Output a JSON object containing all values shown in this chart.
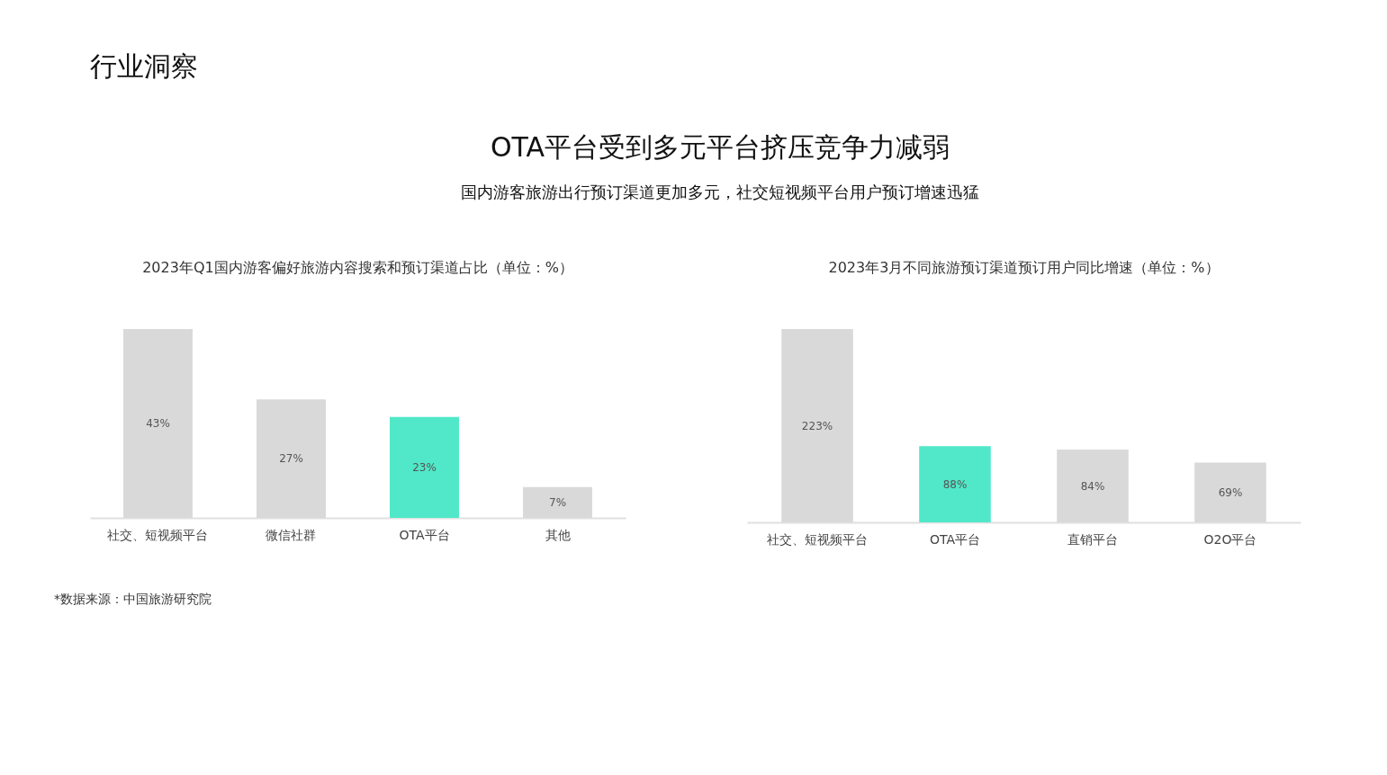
{
  "chart_data": [
    {
      "type": "bar",
      "title": "2023年Q1国内游客偏好旅游内容搜索和预订渠道占比（单位：%）",
      "categories": [
        "社交、短视频平台",
        "微信社群",
        "OTA平台",
        "其他"
      ],
      "values": [
        43,
        27,
        23,
        7
      ],
      "colors": [
        "#d9d9d9",
        "#d9d9d9",
        "#50e8c8",
        "#d9d9d9"
      ],
      "value_labels": [
        "43%",
        "27%",
        "23%",
        "7%"
      ],
      "annotations": [
        "行业洞察",
        "OTA平台受到多元平台挤压竞争力减弱",
        "国内游客旅游出行预订渠道更加多元，社交短视频平台用户预订增速迅猛",
        "*数据来源：中国旅游研究院"
      ]
    },
    {
      "type": "bar",
      "title": "2023年3月不同旅游预订渠道预订用户同比增速（单位：%）",
      "categories": [
        "社交、短视频平台",
        "OTA平台",
        "直销平台",
        "O2O平台"
      ],
      "values": [
        223,
        88,
        84,
        69
      ],
      "colors": [
        "#d9d9d9",
        "#50e8c8",
        "#d9d9d9",
        "#d9d9d9"
      ],
      "value_labels": [
        "223%",
        "88%",
        "84%",
        "69%"
      ]
    }
  ]
}
